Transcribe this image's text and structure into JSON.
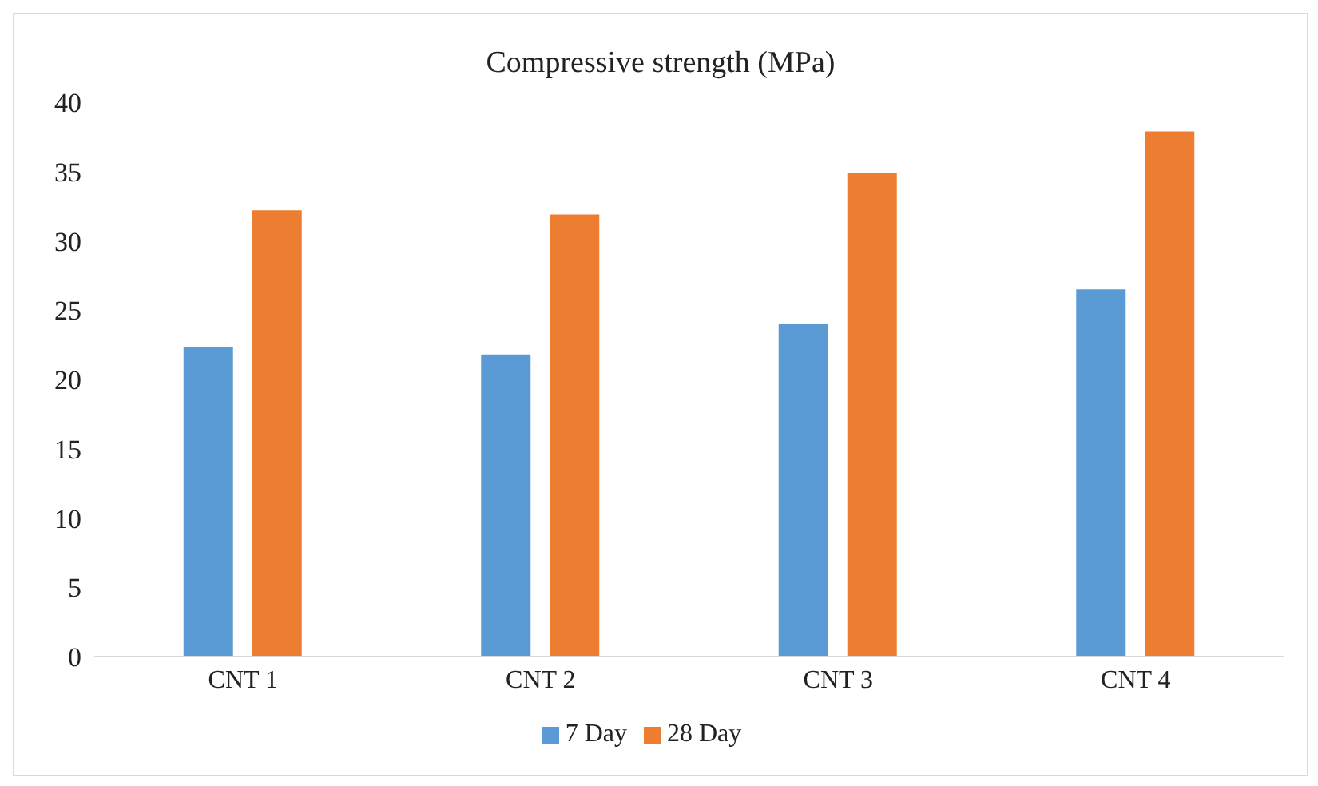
{
  "chart_data": {
    "type": "bar",
    "title": "Compressive strength (MPa)",
    "categories": [
      "CNT 1",
      "CNT 2",
      "CNT 3",
      "CNT 4"
    ],
    "series": [
      {
        "name": "7 Day",
        "color": "#5b9bd5",
        "values": [
          22.3,
          21.8,
          24.0,
          26.5
        ]
      },
      {
        "name": "28 Day",
        "color": "#ed7d31",
        "values": [
          32.2,
          31.9,
          34.9,
          37.9
        ]
      }
    ],
    "ylim": [
      0,
      40
    ],
    "yticks": [
      0,
      5,
      10,
      15,
      20,
      25,
      30,
      35,
      40
    ],
    "grid": false,
    "legend": "bottom"
  }
}
